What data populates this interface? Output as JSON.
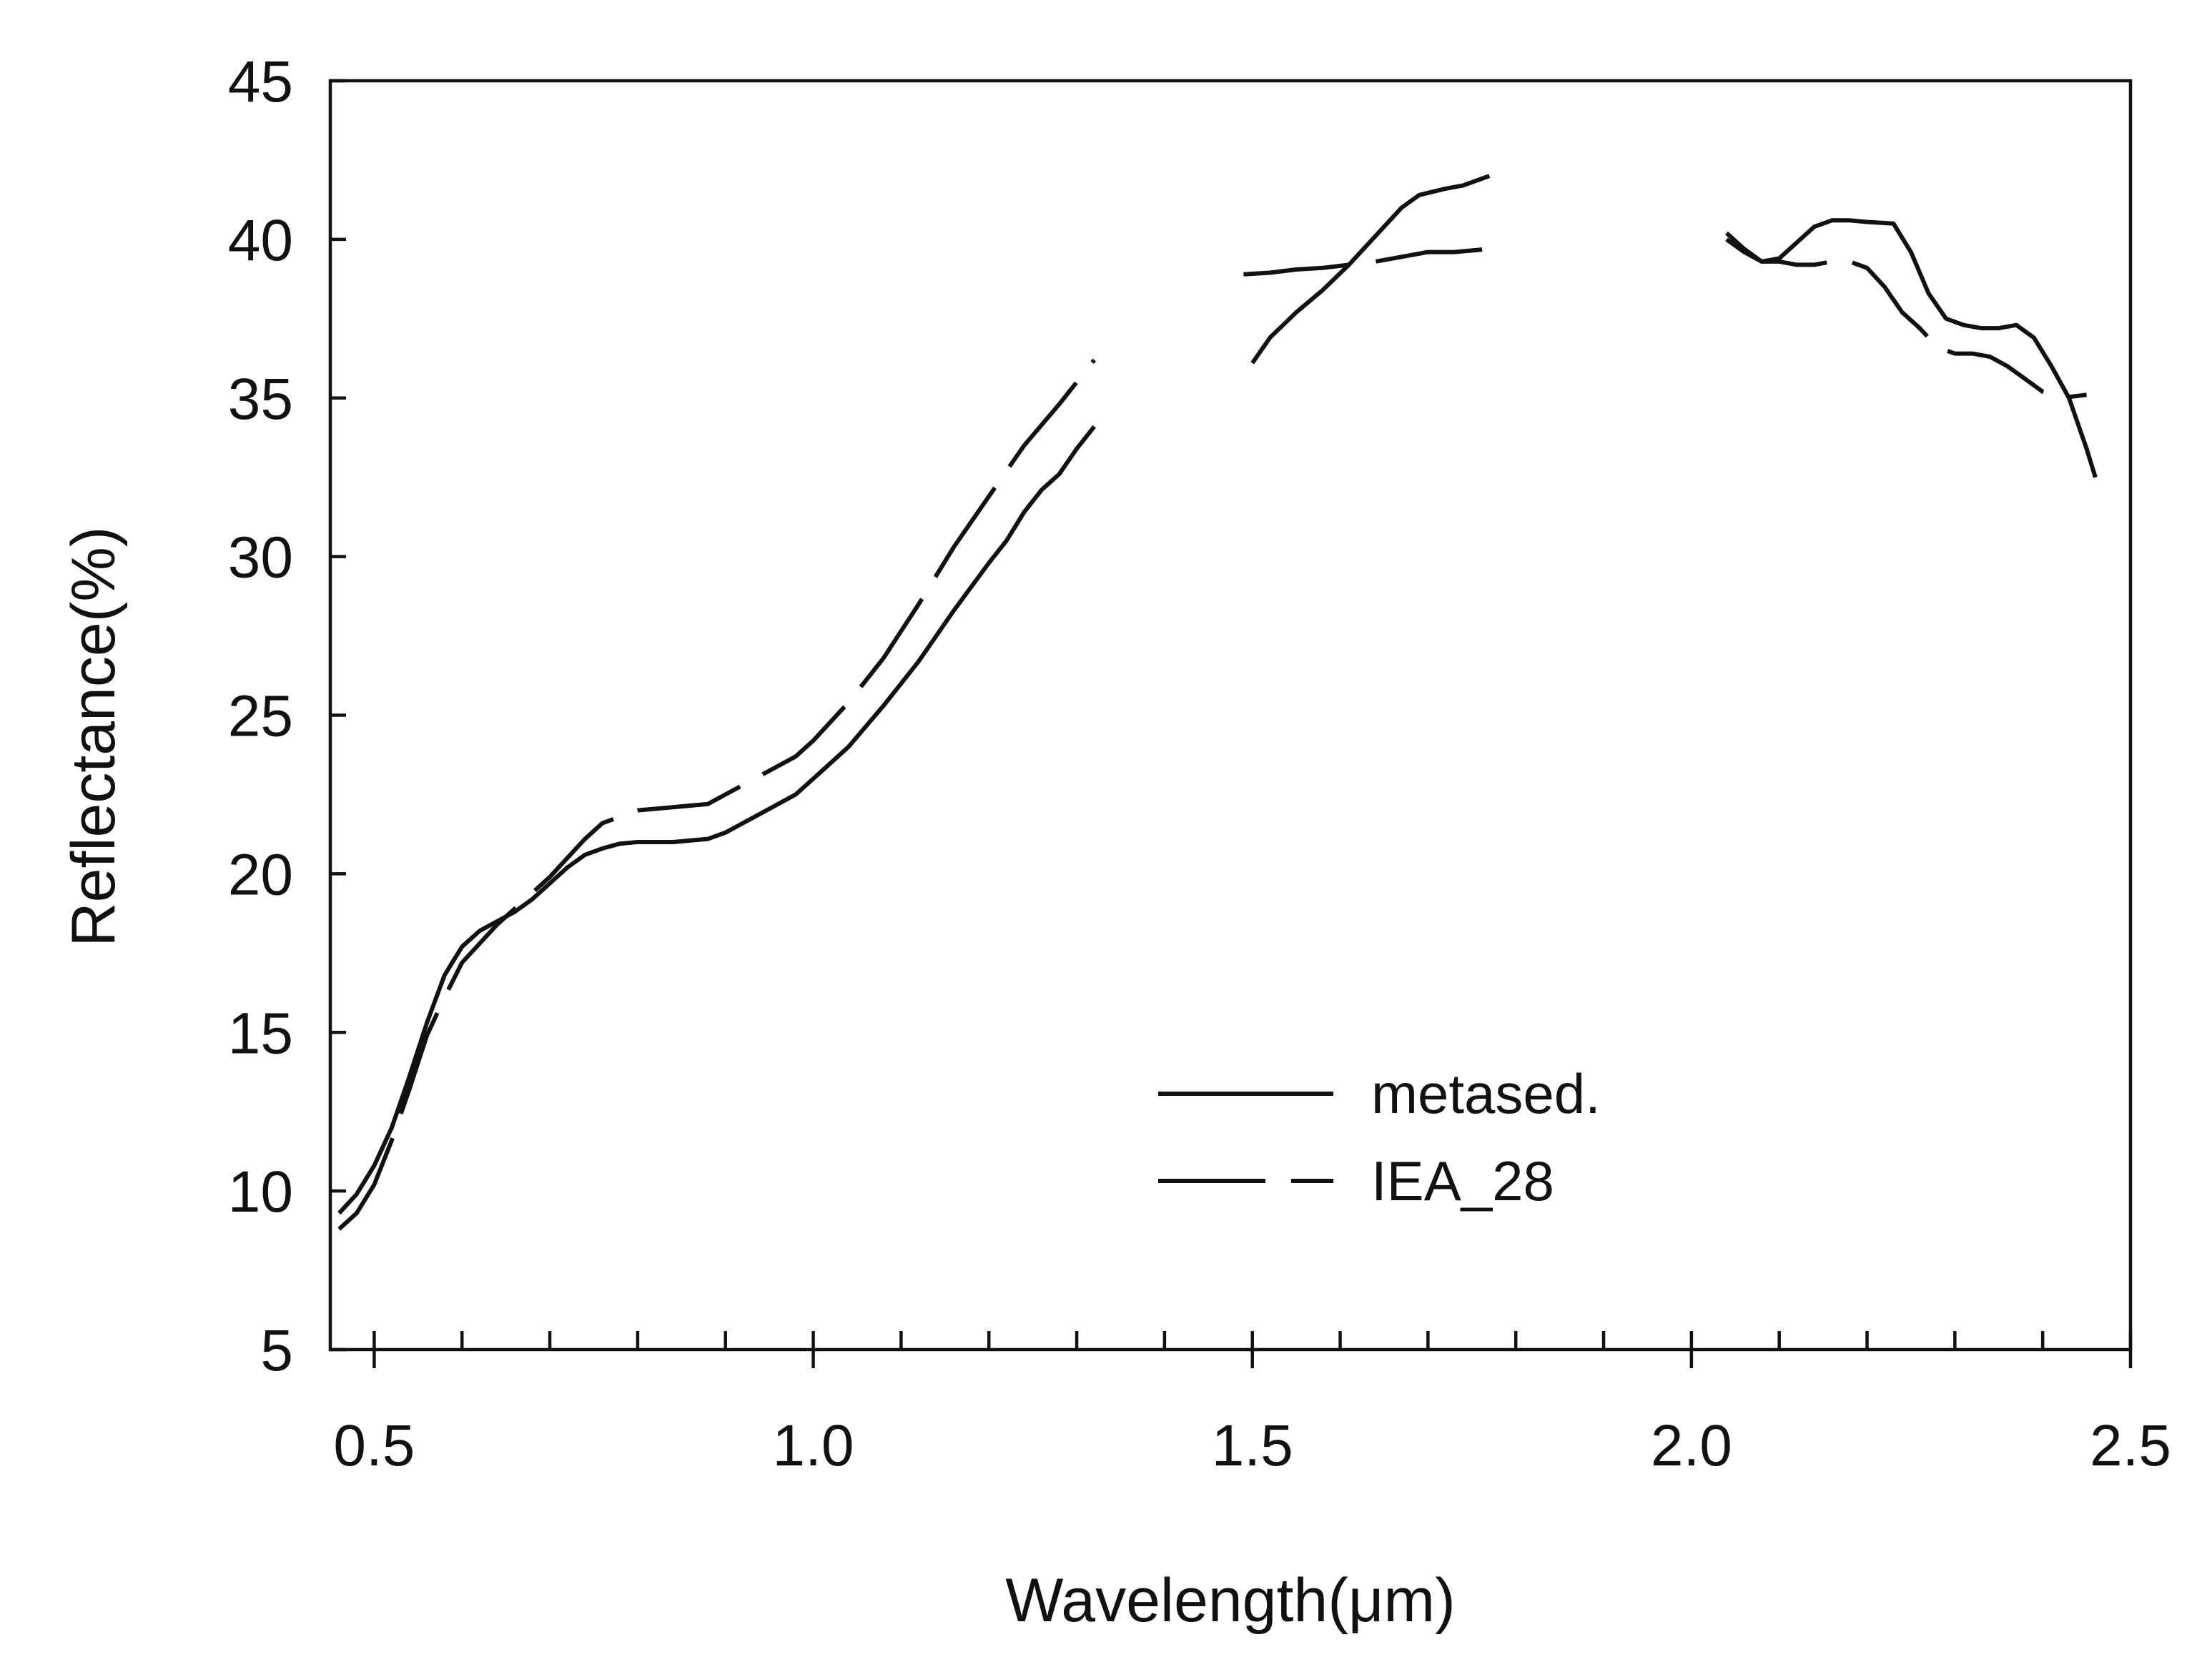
{
  "chart_data": {
    "type": "line",
    "title": "",
    "xlabel": "Wavelength(μm)",
    "ylabel": "Reflectance(%)",
    "xlim": [
      0.45,
      2.5
    ],
    "ylim": [
      5,
      45
    ],
    "x_ticks": [
      0.5,
      1.0,
      1.5,
      2.0,
      2.5
    ],
    "x_tick_labels": [
      "0.5",
      "1.0",
      "1.5",
      "2.0",
      "2.5"
    ],
    "x_minor_step": 0.1,
    "y_ticks": [
      5,
      10,
      15,
      20,
      25,
      30,
      35,
      40,
      45
    ],
    "y_tick_labels": [
      "5",
      "10",
      "15",
      "20",
      "25",
      "30",
      "35",
      "40",
      "45"
    ],
    "grid": false,
    "legend_position": "lower-right",
    "series": [
      {
        "name": "metased.",
        "style": "solid",
        "color": "#111111",
        "segments": [
          [
            [
              0.46,
              9.3
            ],
            [
              0.48,
              9.9
            ],
            [
              0.5,
              10.8
            ],
            [
              0.52,
              12.0
            ],
            [
              0.54,
              13.6
            ],
            [
              0.56,
              15.3
            ],
            [
              0.58,
              16.8
            ],
            [
              0.6,
              17.7
            ],
            [
              0.62,
              18.2
            ],
            [
              0.64,
              18.5
            ],
            [
              0.66,
              18.8
            ],
            [
              0.68,
              19.2
            ],
            [
              0.7,
              19.7
            ],
            [
              0.72,
              20.2
            ],
            [
              0.74,
              20.6
            ],
            [
              0.76,
              20.8
            ],
            [
              0.78,
              20.95
            ],
            [
              0.8,
              21.0
            ],
            [
              0.84,
              21.0
            ],
            [
              0.88,
              21.1
            ],
            [
              0.9,
              21.3
            ],
            [
              0.94,
              21.9
            ],
            [
              0.98,
              22.5
            ],
            [
              1.0,
              23.0
            ],
            [
              1.04,
              24.0
            ],
            [
              1.08,
              25.3
            ],
            [
              1.12,
              26.7
            ],
            [
              1.16,
              28.3
            ],
            [
              1.2,
              29.8
            ],
            [
              1.22,
              30.5
            ],
            [
              1.24,
              31.4
            ],
            [
              1.26,
              32.1
            ],
            [
              1.28,
              32.6
            ],
            [
              1.3,
              33.4
            ],
            [
              1.32,
              34.1
            ]
          ],
          [
            [
              1.5,
              36.1
            ],
            [
              1.52,
              36.9
            ],
            [
              1.55,
              37.7
            ],
            [
              1.58,
              38.4
            ],
            [
              1.61,
              39.2
            ],
            [
              1.64,
              40.1
            ],
            [
              1.67,
              41.0
            ],
            [
              1.69,
              41.4
            ],
            [
              1.72,
              41.6
            ],
            [
              1.74,
              41.7
            ],
            [
              1.77,
              42.0
            ]
          ],
          [
            [
              2.04,
              40.2
            ],
            [
              2.06,
              39.7
            ],
            [
              2.08,
              39.3
            ],
            [
              2.1,
              39.4
            ],
            [
              2.12,
              39.9
            ],
            [
              2.14,
              40.4
            ],
            [
              2.16,
              40.6
            ],
            [
              2.18,
              40.6
            ],
            [
              2.2,
              40.55
            ],
            [
              2.23,
              40.5
            ],
            [
              2.25,
              39.6
            ],
            [
              2.27,
              38.3
            ],
            [
              2.29,
              37.5
            ],
            [
              2.31,
              37.3
            ],
            [
              2.33,
              37.2
            ],
            [
              2.35,
              37.2
            ],
            [
              2.37,
              37.3
            ],
            [
              2.39,
              36.9
            ],
            [
              2.41,
              36.0
            ],
            [
              2.43,
              35.0
            ],
            [
              2.45,
              33.4
            ],
            [
              2.46,
              32.5
            ]
          ]
        ]
      },
      {
        "name": "IEA_28",
        "style": "dashed",
        "color": "#111111",
        "segments": [
          [
            [
              0.46,
              8.8
            ],
            [
              0.48,
              9.3
            ],
            [
              0.5,
              10.2
            ],
            [
              0.52,
              11.6
            ],
            [
              0.54,
              13.2
            ],
            [
              0.56,
              14.9
            ],
            [
              0.58,
              16.1
            ],
            [
              0.6,
              17.2
            ],
            [
              0.62,
              17.8
            ],
            [
              0.64,
              18.4
            ],
            [
              0.66,
              18.9
            ],
            [
              0.68,
              19.4
            ],
            [
              0.7,
              19.9
            ],
            [
              0.72,
              20.5
            ],
            [
              0.74,
              21.1
            ],
            [
              0.76,
              21.6
            ],
            [
              0.78,
              21.8
            ],
            [
              0.8,
              22.0
            ],
            [
              0.84,
              22.1
            ],
            [
              0.88,
              22.2
            ],
            [
              0.9,
              22.5
            ],
            [
              0.94,
              23.1
            ],
            [
              0.98,
              23.7
            ],
            [
              1.0,
              24.2
            ],
            [
              1.04,
              25.4
            ],
            [
              1.08,
              26.8
            ],
            [
              1.12,
              28.5
            ],
            [
              1.16,
              30.3
            ],
            [
              1.2,
              31.9
            ],
            [
              1.24,
              33.5
            ],
            [
              1.28,
              34.8
            ],
            [
              1.32,
              36.2
            ]
          ],
          [
            [
              1.49,
              38.9
            ],
            [
              1.52,
              38.95
            ],
            [
              1.55,
              39.05
            ],
            [
              1.58,
              39.1
            ],
            [
              1.61,
              39.2
            ],
            [
              1.64,
              39.3
            ],
            [
              1.67,
              39.45
            ],
            [
              1.7,
              39.6
            ],
            [
              1.73,
              39.6
            ],
            [
              1.77,
              39.7
            ]
          ],
          [
            [
              2.04,
              40.0
            ],
            [
              2.06,
              39.6
            ],
            [
              2.08,
              39.3
            ],
            [
              2.1,
              39.3
            ],
            [
              2.12,
              39.2
            ],
            [
              2.14,
              39.2
            ],
            [
              2.16,
              39.3
            ],
            [
              2.18,
              39.3
            ],
            [
              2.2,
              39.1
            ],
            [
              2.22,
              38.5
            ],
            [
              2.24,
              37.7
            ],
            [
              2.26,
              37.2
            ],
            [
              2.28,
              36.6
            ],
            [
              2.3,
              36.4
            ],
            [
              2.32,
              36.4
            ],
            [
              2.34,
              36.3
            ],
            [
              2.36,
              36.0
            ],
            [
              2.38,
              35.6
            ],
            [
              2.4,
              35.2
            ],
            [
              2.42,
              35.0
            ],
            [
              2.45,
              35.1
            ]
          ]
        ]
      }
    ]
  }
}
